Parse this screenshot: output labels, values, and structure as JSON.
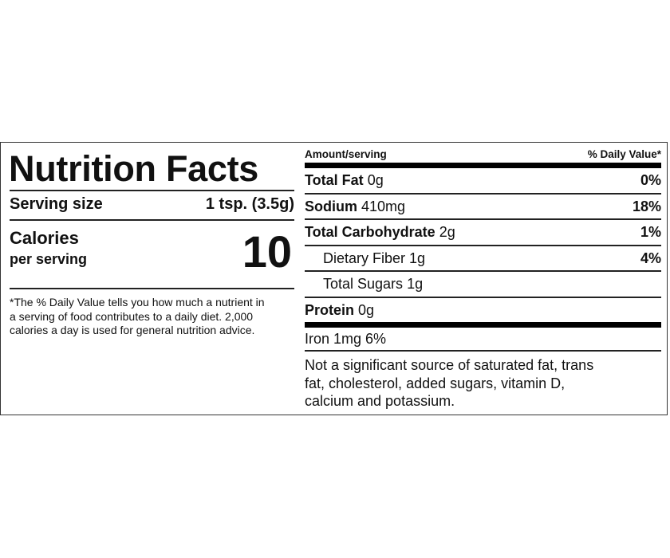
{
  "left": {
    "title": "Nutrition Facts",
    "serving_label": "Serving size",
    "serving_value": "1 tsp. (3.5g)",
    "calories_label": "Calories",
    "calories_sub": "per serving",
    "calories_value": "10",
    "footnote": [
      "*The % Daily Value tells you how much a nutrient in",
      "a serving of food contributes to a daily diet. 2,000",
      "calories a day is used for general nutrition advice."
    ]
  },
  "right": {
    "amount_header": "Amount/serving",
    "dv_header": "% Daily Value*",
    "rows": [
      {
        "name": "Total Fat",
        "amount": "0g",
        "dv": "0%"
      },
      {
        "name": "Sodium",
        "amount": "410mg",
        "dv": "18%"
      },
      {
        "name": "Total Carbohydrate",
        "amount": "2g",
        "dv": "1%"
      },
      {
        "name": "Dietary Fiber",
        "amount": "1g",
        "dv": "4%"
      },
      {
        "name": "Total Sugars",
        "amount": "1g",
        "dv": ""
      },
      {
        "name": "Protein",
        "amount": "0g",
        "dv": ""
      }
    ],
    "iron": "Iron 1mg 6%",
    "note": [
      "Not a significant source of saturated fat, trans",
      "fat, cholesterol, added sugars, vitamin D,",
      "calcium and potassium."
    ]
  }
}
